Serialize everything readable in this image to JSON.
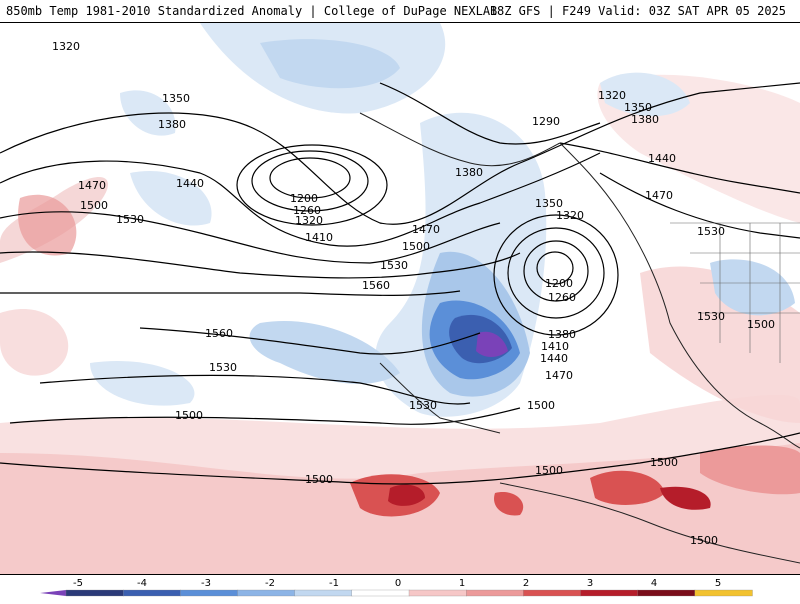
{
  "header": {
    "title_left": "850mb Temp 1981-2010 Standardized Anomaly | College of DuPage NEXLAB",
    "title_right": "18Z GFS | F249 Valid: 03Z SAT APR 05 2025"
  },
  "contours": {
    "labels": [
      {
        "text": "1320"
      },
      {
        "text": "1350"
      },
      {
        "text": "1380"
      },
      {
        "text": "1440"
      },
      {
        "text": "1470"
      },
      {
        "text": "1500"
      },
      {
        "text": "1530"
      },
      {
        "text": "1200"
      },
      {
        "text": "1260"
      },
      {
        "text": "1320"
      },
      {
        "text": "1410"
      },
      {
        "text": "1380"
      },
      {
        "text": "1470"
      },
      {
        "text": "1500"
      },
      {
        "text": "1530"
      },
      {
        "text": "1560"
      },
      {
        "text": "1560"
      },
      {
        "text": "1530"
      },
      {
        "text": "1500"
      },
      {
        "text": "1530"
      },
      {
        "text": "1500"
      },
      {
        "text": "1290"
      },
      {
        "text": "1320"
      },
      {
        "text": "1350"
      },
      {
        "text": "1380"
      },
      {
        "text": "1440"
      },
      {
        "text": "1470"
      },
      {
        "text": "1350"
      },
      {
        "text": "1320"
      },
      {
        "text": "1200"
      },
      {
        "text": "1260"
      },
      {
        "text": "1380"
      },
      {
        "text": "1410"
      },
      {
        "text": "1440"
      },
      {
        "text": "1470"
      },
      {
        "text": "1500"
      },
      {
        "text": "1530"
      },
      {
        "text": "1500"
      },
      {
        "text": "1530"
      },
      {
        "text": "1500"
      },
      {
        "text": "1500"
      },
      {
        "text": "1500"
      }
    ]
  },
  "colorbar": {
    "ticks": [
      "-5",
      "-4",
      "-3",
      "-2",
      "-1",
      "0",
      "1",
      "2",
      "3",
      "4",
      "5"
    ],
    "colors": [
      "#2b3a78",
      "#3b5fb0",
      "#5b8fd8",
      "#8cb4e6",
      "#c2d8f0",
      "#ffffff",
      "#f6c7c7",
      "#ec9a9a",
      "#d95252",
      "#b51d2a",
      "#7a0d1a",
      "#f2c230"
    ],
    "neg_end_color": "#7a42b8"
  }
}
